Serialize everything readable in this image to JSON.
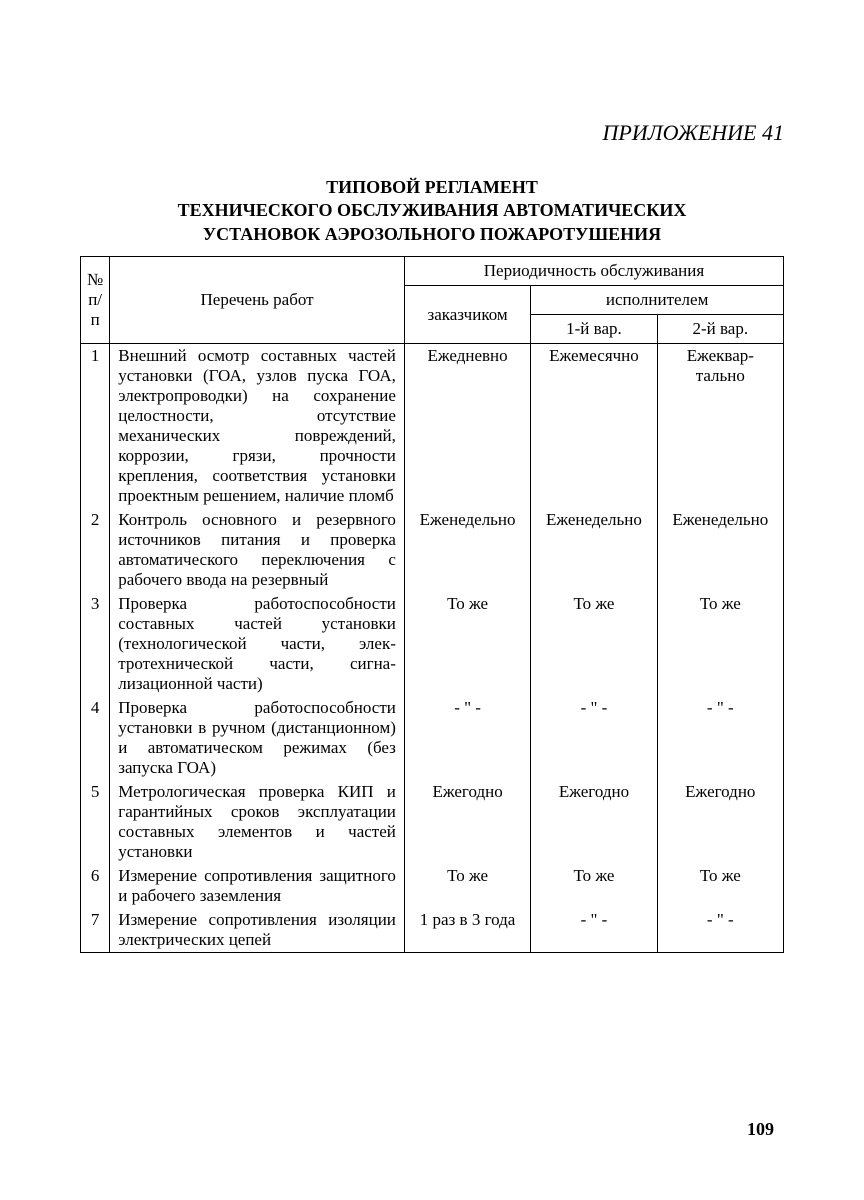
{
  "appendix_label": "ПРИЛОЖЕНИЕ 41",
  "title_line1": "ТИПОВОЙ РЕГЛАМЕНТ",
  "title_line2": "ТЕХНИЧЕСКОГО ОБСЛУЖИВАНИЯ АВТОМАТИЧЕСКИХ",
  "title_line3": "УСТАНОВОК АЭРОЗОЛЬНОГО ПОЖАРОТУШЕНИЯ",
  "table": {
    "headers": {
      "num": "№ п/п",
      "work_list": "Перечень работ",
      "periodicity": "Периодичность обслуживания",
      "by_customer": "заказчиком",
      "by_contractor": "исполнителем",
      "variant1": "1-й вар.",
      "variant2": "2-й вар."
    },
    "rows": [
      {
        "num": "1",
        "work": "Внешний осмотр составных частей установки (ГОА, узлов пуска ГОА, электропроводки) на сохранение целостности, отсутствие механических по­вреждений, коррозии, грязи, прочности крепления, соответ­ствия установки проектным решением, наличие пломб",
        "customer": "Ежед­невно",
        "var1": "Ежеме­сячно",
        "var2": "Ежеквар­тально"
      },
      {
        "num": "2",
        "work": "Контроль основного и резерв­ного источников питания и проверка автоматического пере­ключения с рабочего ввода на резервный",
        "customer": "Ежене­дельно",
        "var1": "Ежене­дельно",
        "var2": "Ежене­дельно"
      },
      {
        "num": "3",
        "work": "Проверка работоспособности составных частей установки (технологической части, элек­тротехнической части, сигна­лизационной части)",
        "customer": "То же",
        "var1": "То же",
        "var2": "То же"
      },
      {
        "num": "4",
        "work": "Проверка работоспособности установки в ручном (дистан­ционном) и автоматическом режимах (без запуска ГОА)",
        "customer": "- \" -",
        "var1": "- \" -",
        "var2": "- \" -"
      },
      {
        "num": "5",
        "work": "Метрологическая проверка КИП и гарантийных сроков эксплуатации составных эле­ментов и частей установки",
        "customer": "Ежегодно",
        "var1": "Ежегодно",
        "var2": "Ежегодно"
      },
      {
        "num": "6",
        "work": "Измерение сопротивления за­щитного и рабочего заземления",
        "customer": "То же",
        "var1": "То же",
        "var2": "То же"
      },
      {
        "num": "7",
        "work": "Измерение сопротивления изо­ляции электрических цепей",
        "customer": "1 раз в 3 года",
        "var1": "- \" -",
        "var2": "- \" -"
      }
    ]
  },
  "page_number": "109",
  "colors": {
    "text": "#000000",
    "background": "#ffffff",
    "border": "#000000"
  },
  "fonts": {
    "body_family": "Times New Roman",
    "appendix_size_pt": 22,
    "title_size_pt": 18,
    "table_size_pt": 17,
    "page_num_size_pt": 18
  }
}
